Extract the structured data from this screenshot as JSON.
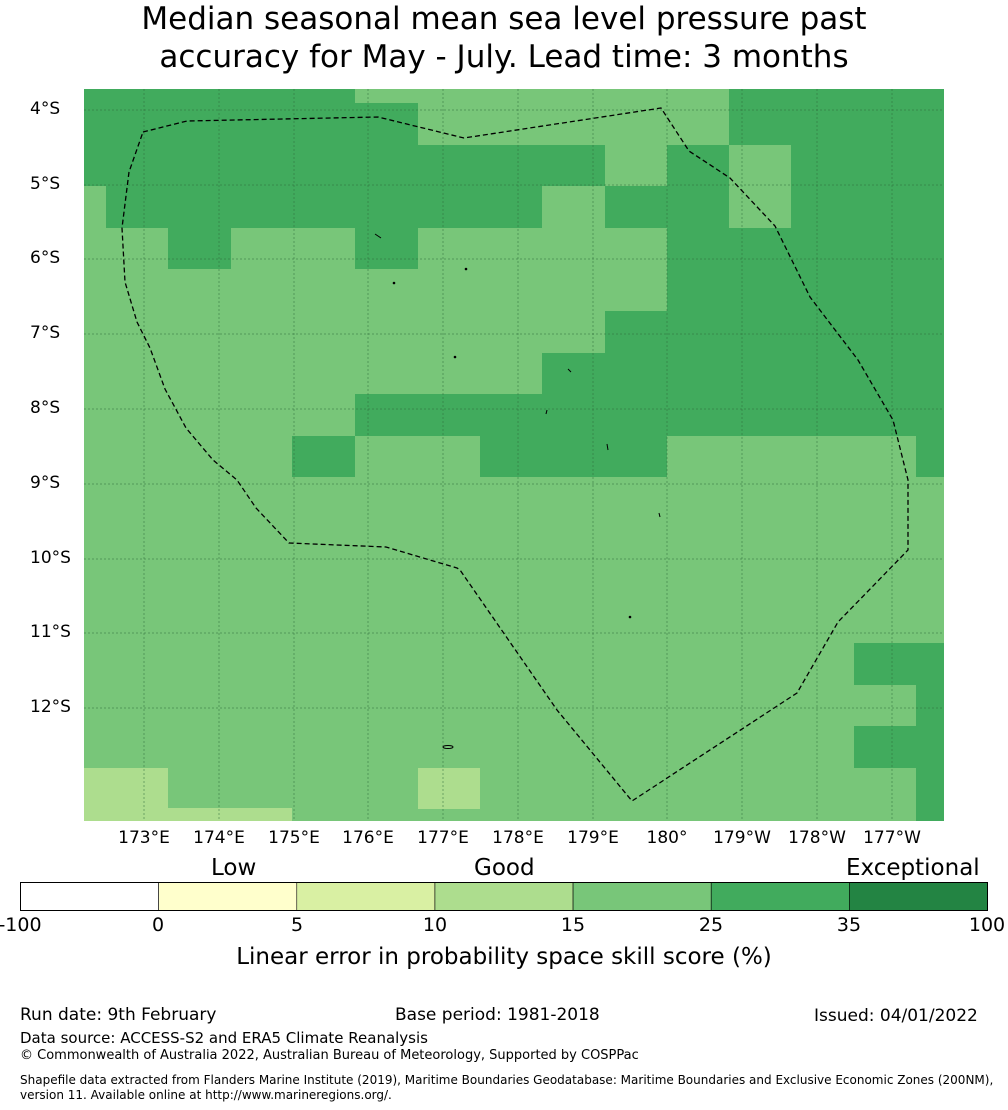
{
  "title": {
    "line1": "Median seasonal mean sea level pressure past",
    "line2": "accuracy for May - July. Lead time: 3 months"
  },
  "map": {
    "lat_labels": [
      "4°S",
      "5°S",
      "6°S",
      "7°S",
      "8°S",
      "9°S",
      "10°S",
      "11°S",
      "12°S"
    ],
    "lon_labels": [
      "173°E",
      "174°E",
      "175°E",
      "176°E",
      "177°E",
      "178°E",
      "179°E",
      "180°",
      "179°W",
      "178°W",
      "177°W"
    ],
    "grid_colors": {
      "band_10_15": "#addd8e",
      "band_15_25": "#78c679",
      "band_25_35": "#41ab5d"
    },
    "eez_boundary_style": "dashed"
  },
  "legend": {
    "categories": [
      "Low",
      "Good",
      "Exceptional"
    ],
    "ticks": [
      "-100",
      "0",
      "5",
      "10",
      "15",
      "25",
      "35",
      "100"
    ],
    "colors": [
      "#ffffff",
      "#ffffcc",
      "#d9f0a3",
      "#addd8e",
      "#78c679",
      "#41ab5d",
      "#238443"
    ],
    "title": "Linear error in probability space skill score (%)"
  },
  "footer": {
    "run_date": "Run date: 9th February",
    "base_period": "Base period: 1981-2018",
    "issued": "Issued: 04/01/2022",
    "data_source": "Data source: ACCESS-S2 and ERA5 Climate Reanalysis",
    "copyright": "© Commonwealth of Australia 2022, Australian Bureau of Meteorology, Supported by COSPPac",
    "shapefile_line1": "Shapefile data extracted from Flanders Marine Institute (2019), Maritime Boundaries Geodatabase: Maritime Boundaries and Exclusive Economic Zones (200NM),",
    "shapefile_line2": "version 11. Available online at http://www.marineregions.org/."
  }
}
